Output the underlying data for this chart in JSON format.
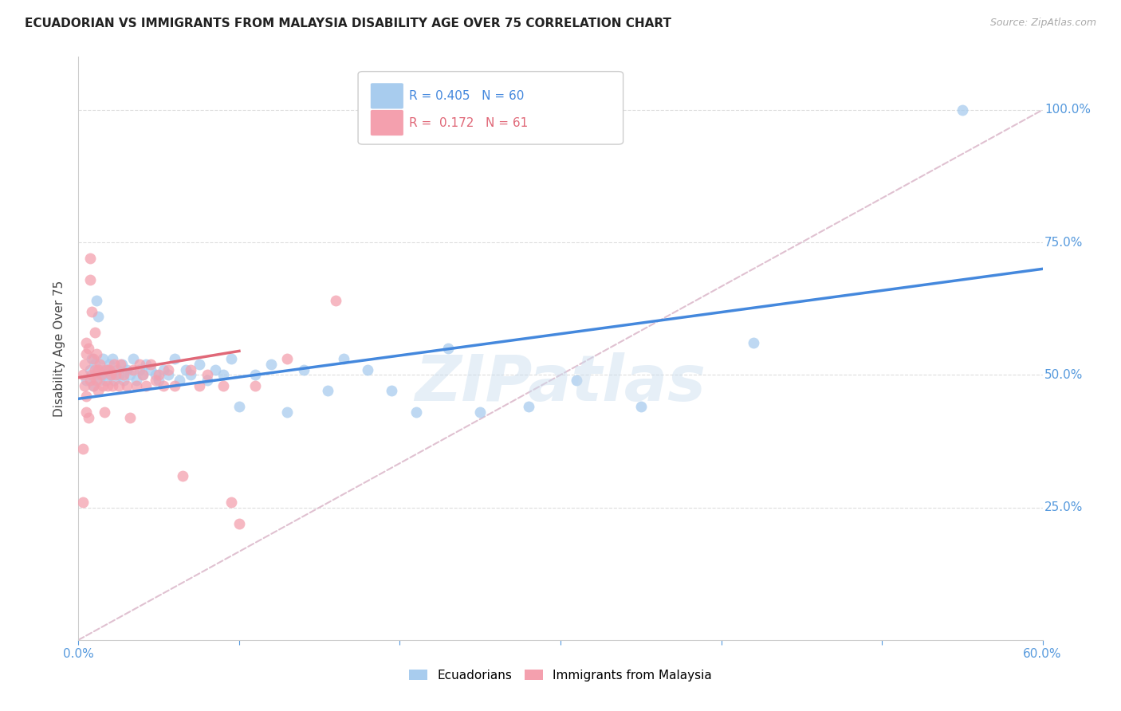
{
  "title": "ECUADORIAN VS IMMIGRANTS FROM MALAYSIA DISABILITY AGE OVER 75 CORRELATION CHART",
  "source": "Source: ZipAtlas.com",
  "ylabel": "Disability Age Over 75",
  "x_min": 0.0,
  "x_max": 0.6,
  "y_min": 0.0,
  "y_max": 1.1,
  "x_ticks": [
    0.0,
    0.1,
    0.2,
    0.3,
    0.4,
    0.5,
    0.6
  ],
  "x_tick_labels": [
    "0.0%",
    "",
    "",
    "",
    "",
    "",
    "60.0%"
  ],
  "y_ticks": [
    0.25,
    0.5,
    0.75,
    1.0
  ],
  "y_tick_labels": [
    "25.0%",
    "50.0%",
    "75.0%",
    "100.0%"
  ],
  "watermark": "ZIPatlas",
  "color_blue": "#A8CCEE",
  "color_pink": "#F4A0AE",
  "color_trendline_blue": "#4488DD",
  "color_trendline_pink": "#E06878",
  "color_dashed": "#DDBBCC",
  "color_axis_right": "#5599DD",
  "ecuadorians_x": [
    0.005,
    0.007,
    0.008,
    0.009,
    0.01,
    0.01,
    0.011,
    0.012,
    0.013,
    0.014,
    0.015,
    0.016,
    0.017,
    0.018,
    0.019,
    0.02,
    0.021,
    0.022,
    0.024,
    0.025,
    0.027,
    0.028,
    0.03,
    0.032,
    0.034,
    0.036,
    0.038,
    0.04,
    0.042,
    0.045,
    0.048,
    0.05,
    0.053,
    0.056,
    0.06,
    0.063,
    0.067,
    0.07,
    0.075,
    0.08,
    0.085,
    0.09,
    0.095,
    0.1,
    0.11,
    0.12,
    0.13,
    0.14,
    0.155,
    0.165,
    0.18,
    0.195,
    0.21,
    0.23,
    0.25,
    0.28,
    0.31,
    0.35,
    0.42,
    0.55
  ],
  "ecuadorians_y": [
    0.49,
    0.51,
    0.53,
    0.48,
    0.52,
    0.5,
    0.64,
    0.61,
    0.49,
    0.51,
    0.53,
    0.5,
    0.49,
    0.51,
    0.52,
    0.5,
    0.53,
    0.49,
    0.51,
    0.5,
    0.52,
    0.49,
    0.51,
    0.5,
    0.53,
    0.49,
    0.51,
    0.5,
    0.52,
    0.51,
    0.5,
    0.49,
    0.51,
    0.5,
    0.53,
    0.49,
    0.51,
    0.5,
    0.52,
    0.49,
    0.51,
    0.5,
    0.53,
    0.44,
    0.5,
    0.52,
    0.43,
    0.51,
    0.47,
    0.53,
    0.51,
    0.47,
    0.43,
    0.55,
    0.43,
    0.44,
    0.49,
    0.44,
    0.56,
    1.0
  ],
  "malaysia_x": [
    0.003,
    0.004,
    0.004,
    0.005,
    0.005,
    0.005,
    0.005,
    0.006,
    0.006,
    0.007,
    0.007,
    0.007,
    0.008,
    0.008,
    0.009,
    0.009,
    0.01,
    0.01,
    0.011,
    0.011,
    0.012,
    0.012,
    0.013,
    0.014,
    0.015,
    0.016,
    0.017,
    0.018,
    0.019,
    0.02,
    0.021,
    0.022,
    0.023,
    0.025,
    0.026,
    0.028,
    0.03,
    0.032,
    0.034,
    0.036,
    0.038,
    0.04,
    0.042,
    0.045,
    0.048,
    0.05,
    0.053,
    0.056,
    0.06,
    0.065,
    0.07,
    0.075,
    0.08,
    0.09,
    0.095,
    0.1,
    0.11,
    0.13,
    0.16,
    0.003,
    0.003
  ],
  "malaysia_y": [
    0.5,
    0.52,
    0.48,
    0.46,
    0.54,
    0.43,
    0.56,
    0.42,
    0.55,
    0.72,
    0.68,
    0.49,
    0.62,
    0.5,
    0.48,
    0.53,
    0.58,
    0.51,
    0.54,
    0.49,
    0.51,
    0.47,
    0.52,
    0.5,
    0.48,
    0.43,
    0.51,
    0.48,
    0.51,
    0.5,
    0.48,
    0.52,
    0.5,
    0.48,
    0.52,
    0.5,
    0.48,
    0.42,
    0.51,
    0.48,
    0.52,
    0.5,
    0.48,
    0.52,
    0.49,
    0.5,
    0.48,
    0.51,
    0.48,
    0.31,
    0.51,
    0.48,
    0.5,
    0.48,
    0.26,
    0.22,
    0.48,
    0.53,
    0.64,
    0.26,
    0.36
  ],
  "background_color": "#FFFFFF",
  "grid_color": "#DDDDDD",
  "trendline_blue_x0": 0.0,
  "trendline_blue_y0": 0.455,
  "trendline_blue_x1": 0.6,
  "trendline_blue_y1": 0.7,
  "trendline_pink_x0": 0.0,
  "trendline_pink_y0": 0.495,
  "trendline_pink_x1": 0.1,
  "trendline_pink_y1": 0.545
}
